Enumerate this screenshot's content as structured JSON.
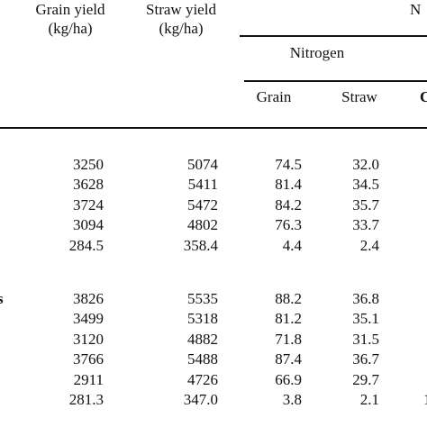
{
  "table": {
    "headers": {
      "grain_yield_line1": "Grain yield",
      "grain_yield_line2": "(kg/ha)",
      "straw_yield_line1": "Straw yield",
      "straw_yield_line2": "(kg/ha)",
      "group_partial": "N",
      "nitrogen": "Nitrogen",
      "grain": "Grain",
      "straw": "Straw",
      "next_partial": "C"
    },
    "left_partial_mark": "s",
    "section1": [
      [
        "3250",
        "5074",
        "74.5",
        "32.0"
      ],
      [
        "3628",
        "5411",
        "81.4",
        "34.5"
      ],
      [
        "3724",
        "5472",
        "84.2",
        "35.7"
      ],
      [
        "3094",
        "4802",
        "76.3",
        "33.7"
      ],
      [
        "284.5",
        "358.4",
        "4.4",
        "2.4"
      ]
    ],
    "section2": [
      [
        "3826",
        "5535",
        "88.2",
        "36.8"
      ],
      [
        "3499",
        "5318",
        "81.2",
        "35.1"
      ],
      [
        "3120",
        "4882",
        "71.8",
        "31.5"
      ],
      [
        "3766",
        "5488",
        "87.4",
        "36.7"
      ],
      [
        "2911",
        "4726",
        "66.9",
        "29.7"
      ],
      [
        "281.3",
        "347.0",
        "3.8",
        "2.1"
      ]
    ],
    "right_edge_partials": [
      "",
      "",
      "",
      "",
      "",
      "",
      "",
      "",
      "",
      "",
      "1"
    ]
  }
}
